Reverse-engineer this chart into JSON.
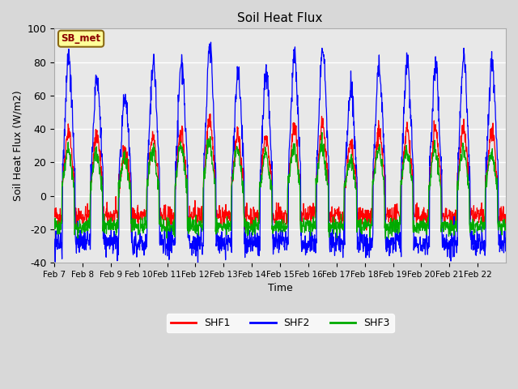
{
  "title": "Soil Heat Flux",
  "ylabel": "Soil Heat Flux (W/m2)",
  "xlabel": "Time",
  "ylim": [
    -40,
    100
  ],
  "fig_facecolor": "#d8d8d8",
  "plot_facecolor": "#e8e8e8",
  "annotation_text": "SB_met",
  "annotation_bg": "#ffff99",
  "annotation_border": "#8b6914",
  "annotation_text_color": "#8b0000",
  "colors": {
    "SHF1": "#ff0000",
    "SHF2": "#0000ff",
    "SHF3": "#00aa00"
  },
  "legend_labels": [
    "SHF1",
    "SHF2",
    "SHF3"
  ],
  "xtick_labels": [
    "Feb 7",
    "Feb 8",
    "Feb 9",
    "Feb 10",
    "Feb 11",
    "Feb 12",
    "Feb 13",
    "Feb 14",
    "Feb 15",
    "Feb 16",
    "Feb 17",
    "Feb 18",
    "Feb 19",
    "Feb 20",
    "Feb 21",
    "Feb 22"
  ],
  "ytick_values": [
    -40,
    -20,
    0,
    20,
    40,
    60,
    80,
    100
  ],
  "grid_color": "#ffffff",
  "num_days": 16,
  "points_per_day": 96,
  "shf2_peaks": [
    85,
    70,
    61,
    80,
    80,
    90,
    74,
    75,
    85,
    89,
    65,
    77,
    79,
    77,
    82,
    82
  ]
}
